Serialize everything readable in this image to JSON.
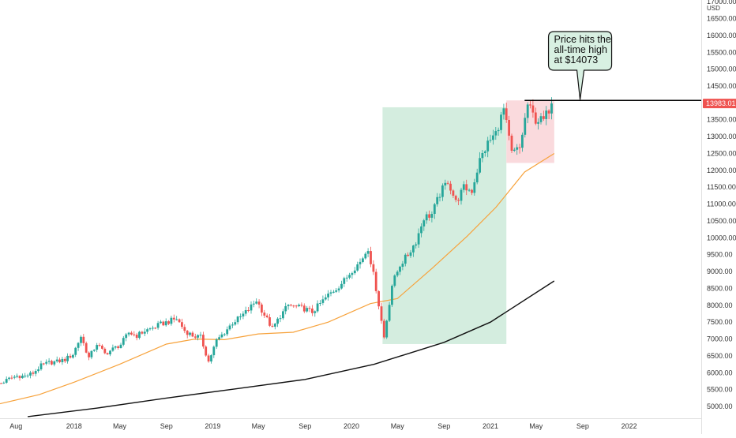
{
  "chart_data": {
    "type": "candlestick",
    "currency_label": "USD",
    "x_ticks": [
      {
        "label": "Aug",
        "date": "2017-08"
      },
      {
        "label": "2018",
        "date": "2018-01"
      },
      {
        "label": "May",
        "date": "2018-05"
      },
      {
        "label": "Sep",
        "date": "2018-09"
      },
      {
        "label": "2019",
        "date": "2019-01"
      },
      {
        "label": "May",
        "date": "2019-05"
      },
      {
        "label": "Sep",
        "date": "2019-09"
      },
      {
        "label": "2020",
        "date": "2020-01"
      },
      {
        "label": "May",
        "date": "2020-05"
      },
      {
        "label": "Sep",
        "date": "2020-09"
      },
      {
        "label": "2021",
        "date": "2021-01"
      },
      {
        "label": "May",
        "date": "2021-05"
      },
      {
        "label": "Sep",
        "date": "2021-09"
      },
      {
        "label": "2022",
        "date": "2022-01"
      }
    ],
    "y_ticks": [
      {
        "label": "5000.00",
        "value": 5000
      },
      {
        "label": "5500.00",
        "value": 5500
      },
      {
        "label": "6000.00",
        "value": 6000
      },
      {
        "label": "6500.00",
        "value": 6500
      },
      {
        "label": "7000.00",
        "value": 7000
      },
      {
        "label": "7500.00",
        "value": 7500
      },
      {
        "label": "8000.00",
        "value": 8000
      },
      {
        "label": "8500.00",
        "value": 8500
      },
      {
        "label": "9000.00",
        "value": 9000
      },
      {
        "label": "9500.00",
        "value": 9500
      },
      {
        "label": "10000.00",
        "value": 10000
      },
      {
        "label": "10500.00",
        "value": 10500
      },
      {
        "label": "11000.00",
        "value": 11000
      },
      {
        "label": "11500.00",
        "value": 11500
      },
      {
        "label": "12000.00",
        "value": 12000
      },
      {
        "label": "12500.00",
        "value": 12500
      },
      {
        "label": "13000.00",
        "value": 13000
      },
      {
        "label": "13500.00",
        "value": 13500
      },
      {
        "label": "14000.00",
        "value": 14000
      },
      {
        "label": "14500.00",
        "value": 14500
      },
      {
        "label": "15000.00",
        "value": 15000
      },
      {
        "label": "15500.00",
        "value": 15500
      },
      {
        "label": "16000.00",
        "value": 16000
      },
      {
        "label": "16500.00",
        "value": 16500
      },
      {
        "label": "17000.00",
        "value": 17000
      }
    ],
    "ylim": [
      4650,
      17050
    ],
    "xlim": [
      "2017-06-20",
      "2022-07-10"
    ],
    "last_price": {
      "label": "13983.01",
      "value": 13983.01
    },
    "resistance_line": {
      "value": 14073,
      "from": "2021-04-01"
    },
    "callout": {
      "lines": [
        "Price hits the",
        "all-time high",
        "at $14073"
      ],
      "anchor_date": "2021-08-25",
      "anchor_value": 14073
    },
    "zones": [
      {
        "name": "rally",
        "from": "2020-03-23",
        "to": "2021-02-12",
        "low": 6850,
        "high": 13870,
        "color": "#d4eddf"
      },
      {
        "name": "consolidation",
        "from": "2021-02-12",
        "to": "2021-06-18",
        "low": 12220,
        "high": 14073,
        "color": "#fadadd"
      }
    ],
    "candle_interval_days": 7,
    "candles": [
      {
        "date": "2017-06-23",
        "close": 5690
      },
      {
        "date": "2017-07-14",
        "close": 5820
      },
      {
        "date": "2017-08-04",
        "close": 5905
      },
      {
        "date": "2017-08-25",
        "close": 5900
      },
      {
        "date": "2017-09-15",
        "close": 5990
      },
      {
        "date": "2017-10-06",
        "close": 6210
      },
      {
        "date": "2017-10-27",
        "close": 6300
      },
      {
        "date": "2017-11-17",
        "close": 6330
      },
      {
        "date": "2017-12-08",
        "close": 6390
      },
      {
        "date": "2017-12-29",
        "close": 6550
      },
      {
        "date": "2018-01-19",
        "close": 7080
      },
      {
        "date": "2018-02-09",
        "close": 6440
      },
      {
        "date": "2018-03-02",
        "close": 6860
      },
      {
        "date": "2018-03-23",
        "close": 6560
      },
      {
        "date": "2018-04-13",
        "close": 6700
      },
      {
        "date": "2018-05-04",
        "close": 6840
      },
      {
        "date": "2018-05-25",
        "close": 7190
      },
      {
        "date": "2018-06-15",
        "close": 7100
      },
      {
        "date": "2018-07-06",
        "close": 7240
      },
      {
        "date": "2018-07-27",
        "close": 7330
      },
      {
        "date": "2018-08-17",
        "close": 7440
      },
      {
        "date": "2018-09-07",
        "close": 7520
      },
      {
        "date": "2018-09-28",
        "close": 7600
      },
      {
        "date": "2018-10-19",
        "close": 7250
      },
      {
        "date": "2018-11-09",
        "close": 7100
      },
      {
        "date": "2018-11-30",
        "close": 7050
      },
      {
        "date": "2018-12-21",
        "close": 6330
      },
      {
        "date": "2019-01-11",
        "close": 6950
      },
      {
        "date": "2019-02-01",
        "close": 7200
      },
      {
        "date": "2019-02-22",
        "close": 7480
      },
      {
        "date": "2019-03-15",
        "close": 7650
      },
      {
        "date": "2019-04-05",
        "close": 7870
      },
      {
        "date": "2019-04-26",
        "close": 8150
      },
      {
        "date": "2019-05-17",
        "close": 7720
      },
      {
        "date": "2019-06-07",
        "close": 7300
      },
      {
        "date": "2019-06-28",
        "close": 7690
      },
      {
        "date": "2019-07-19",
        "close": 8000
      },
      {
        "date": "2019-08-09",
        "close": 7950
      },
      {
        "date": "2019-08-30",
        "close": 7900
      },
      {
        "date": "2019-09-20",
        "close": 7800
      },
      {
        "date": "2019-10-11",
        "close": 8050
      },
      {
        "date": "2019-11-01",
        "close": 8300
      },
      {
        "date": "2019-11-22",
        "close": 8500
      },
      {
        "date": "2019-12-13",
        "close": 8730
      },
      {
        "date": "2020-01-03",
        "close": 9050
      },
      {
        "date": "2020-01-24",
        "close": 9280
      },
      {
        "date": "2020-02-14",
        "close": 9700
      },
      {
        "date": "2020-03-06",
        "close": 8500
      },
      {
        "date": "2020-03-27",
        "close": 7050
      },
      {
        "date": "2020-04-17",
        "close": 8600
      },
      {
        "date": "2020-05-08",
        "close": 9200
      },
      {
        "date": "2020-05-29",
        "close": 9500
      },
      {
        "date": "2020-06-19",
        "close": 9900
      },
      {
        "date": "2020-07-10",
        "close": 10600
      },
      {
        "date": "2020-07-31",
        "close": 10700
      },
      {
        "date": "2020-08-21",
        "close": 11300
      },
      {
        "date": "2020-09-11",
        "close": 11700
      },
      {
        "date": "2020-10-02",
        "close": 11050
      },
      {
        "date": "2020-10-23",
        "close": 11480
      },
      {
        "date": "2020-11-13",
        "close": 11400
      },
      {
        "date": "2020-12-04",
        "close": 12300
      },
      {
        "date": "2020-12-25",
        "close": 12800
      },
      {
        "date": "2021-01-15",
        "close": 13100
      },
      {
        "date": "2021-02-05",
        "close": 13800
      },
      {
        "date": "2021-02-26",
        "close": 12500
      },
      {
        "date": "2021-03-19",
        "close": 12650
      },
      {
        "date": "2021-04-09",
        "close": 13950
      },
      {
        "date": "2021-04-30",
        "close": 13500
      },
      {
        "date": "2021-05-21",
        "close": 13480
      },
      {
        "date": "2021-06-11",
        "close": 13983
      }
    ],
    "series": [
      {
        "color": "#f7a23b",
        "points": [
          [
            "2017-06-20",
            5080
          ],
          [
            "2017-10-01",
            5350
          ],
          [
            "2018-01-01",
            5720
          ],
          [
            "2018-05-01",
            6250
          ],
          [
            "2018-09-01",
            6850
          ],
          [
            "2018-11-15",
            7000
          ],
          [
            "2019-02-01",
            6980
          ],
          [
            "2019-05-01",
            7150
          ],
          [
            "2019-08-01",
            7200
          ],
          [
            "2019-11-01",
            7500
          ],
          [
            "2020-02-20",
            8050
          ],
          [
            "2020-05-01",
            8200
          ],
          [
            "2020-08-01",
            9100
          ],
          [
            "2020-11-01",
            10050
          ],
          [
            "2021-01-15",
            10900
          ],
          [
            "2021-04-01",
            11950
          ],
          [
            "2021-06-18",
            12500
          ]
        ]
      },
      {
        "color": "#111111",
        "points": [
          [
            "2017-09-01",
            4700
          ],
          [
            "2018-03-01",
            4950
          ],
          [
            "2018-09-01",
            5250
          ],
          [
            "2019-03-01",
            5520
          ],
          [
            "2019-09-01",
            5800
          ],
          [
            "2020-03-01",
            6250
          ],
          [
            "2020-09-01",
            6900
          ],
          [
            "2021-01-01",
            7500
          ],
          [
            "2021-06-18",
            8720
          ]
        ]
      }
    ]
  }
}
